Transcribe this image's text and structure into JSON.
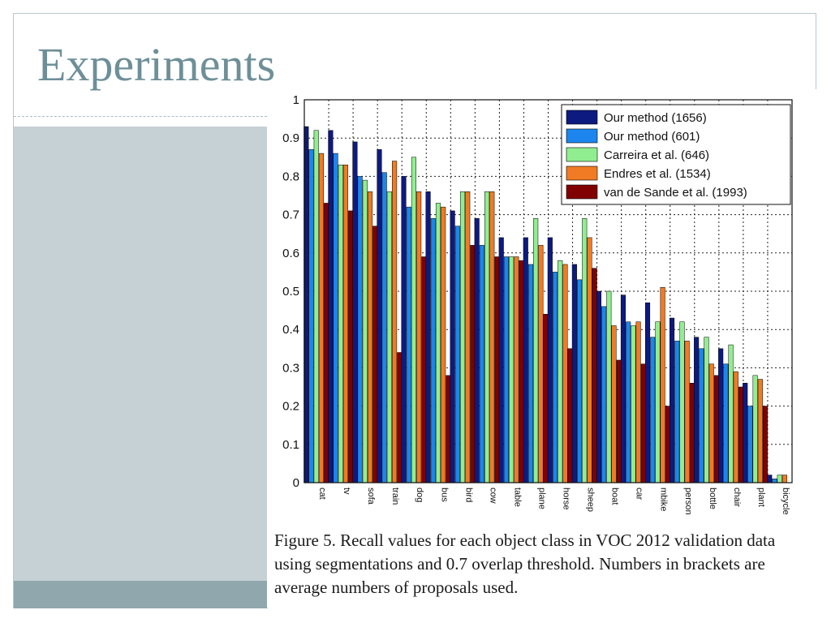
{
  "slide": {
    "title": "Experiments",
    "caption": "Figure 5. Recall values for each object class in VOC 2012 validation data using segmentations and 0.7 overlap threshold. Numbers in brackets are average numbers of proposals used."
  },
  "colors": {
    "title": "#6e8f98",
    "side_panel": "#c6d1d6",
    "side_accent": "#8fa7ad"
  },
  "chart_data": {
    "type": "bar",
    "title": "",
    "xlabel": "",
    "ylabel": "",
    "ylim": [
      0,
      1
    ],
    "yticks": [
      0,
      0.1,
      0.2,
      0.3,
      0.4,
      0.5,
      0.6,
      0.7,
      0.8,
      0.9,
      1
    ],
    "ytick_labels": [
      "0",
      "0.1",
      "0.2",
      "0.3",
      "0.4",
      "0.5",
      "0.6",
      "0.7",
      "0.8",
      "0.9",
      "1"
    ],
    "grid": true,
    "legend_position": "top-right",
    "categories": [
      "cat",
      "tv",
      "sofa",
      "train",
      "dog",
      "bus",
      "bird",
      "cow",
      "table",
      "plane",
      "horse",
      "sheep",
      "boat",
      "car",
      "mbike",
      "person",
      "bottle",
      "chair",
      "plant",
      "bicycle"
    ],
    "series": [
      {
        "name": "Our method (1656)",
        "color": "#0d1a80",
        "values": [
          0.93,
          0.92,
          0.89,
          0.87,
          0.8,
          0.76,
          0.71,
          0.69,
          0.64,
          0.64,
          0.64,
          0.57,
          0.5,
          0.49,
          0.47,
          0.43,
          0.38,
          0.35,
          0.26,
          0.02
        ]
      },
      {
        "name": "Our method (601)",
        "color": "#1c86ee",
        "values": [
          0.87,
          0.86,
          0.8,
          0.81,
          0.72,
          0.69,
          0.67,
          0.62,
          0.59,
          0.57,
          0.55,
          0.53,
          0.46,
          0.42,
          0.38,
          0.37,
          0.35,
          0.31,
          0.2,
          0.01
        ]
      },
      {
        "name": "Carreira et al. (646)",
        "color": "#90ee90",
        "values": [
          0.92,
          0.83,
          0.79,
          0.76,
          0.85,
          0.73,
          0.76,
          0.76,
          0.59,
          0.69,
          0.58,
          0.69,
          0.5,
          0.41,
          0.42,
          0.42,
          0.38,
          0.36,
          0.28,
          0.02
        ]
      },
      {
        "name": "Endres et al. (1534)",
        "color": "#f07b24",
        "values": [
          0.86,
          0.83,
          0.76,
          0.84,
          0.76,
          0.72,
          0.76,
          0.76,
          0.59,
          0.62,
          0.57,
          0.64,
          0.41,
          0.42,
          0.51,
          0.37,
          0.31,
          0.29,
          0.27,
          0.02
        ]
      },
      {
        "name": "van de Sande et al. (1993)",
        "color": "#800000",
        "values": [
          0.73,
          0.71,
          0.67,
          0.34,
          0.59,
          0.28,
          0.62,
          0.59,
          0.58,
          0.44,
          0.35,
          0.56,
          0.32,
          0.31,
          0.2,
          0.26,
          0.28,
          0.25,
          0.2,
          0.0
        ]
      }
    ]
  }
}
